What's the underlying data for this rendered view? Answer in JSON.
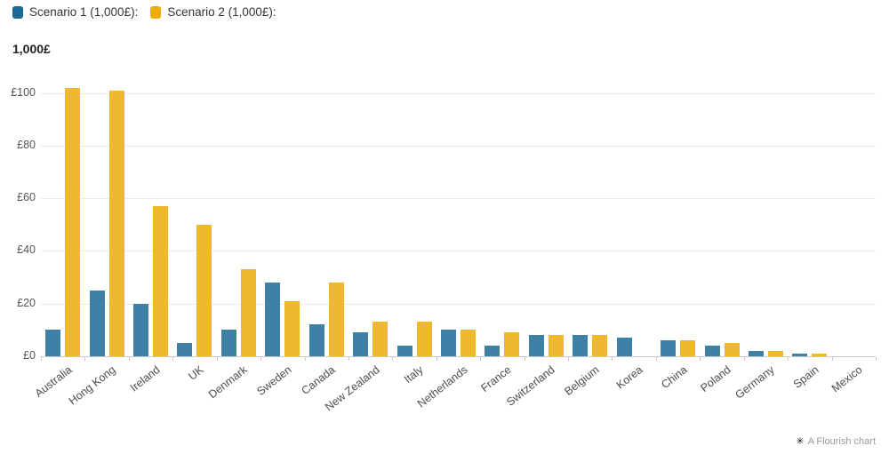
{
  "legend": {
    "items": [
      {
        "label": "Scenario 1 (1,000£):",
        "color": "#1d6996"
      },
      {
        "label": "Scenario 2 (1,000£):",
        "color": "#edad08"
      }
    ]
  },
  "y_axis": {
    "title": "1,000£",
    "tick_labels": [
      "£0",
      "£20",
      "£40",
      "£60",
      "£80",
      "£100"
    ],
    "tick_values": [
      0,
      20,
      40,
      60,
      80,
      100
    ]
  },
  "footer": {
    "credit": "A Flourish chart",
    "logo_glyph": "✳"
  },
  "chart_data": {
    "type": "bar",
    "title": "",
    "xlabel": "",
    "ylabel": "1,000£",
    "ylim": [
      0,
      103
    ],
    "grid": true,
    "legend_position": "top-left",
    "categories": [
      "Australia",
      "Hong Kong",
      "Ireland",
      "UK",
      "Denmark",
      "Sweden",
      "Canada",
      "New Zealand",
      "Italy",
      "Netherlands",
      "France",
      "Switzerland",
      "Belgium",
      "Korea",
      "China",
      "Poland",
      "Germany",
      "Spain",
      "Mexico"
    ],
    "series": [
      {
        "name": "Scenario 1 (1,000£)",
        "color": "#3f80a6",
        "values": [
          10,
          25,
          20,
          5,
          10,
          28,
          12,
          9,
          4,
          10,
          4,
          8,
          8,
          7,
          6,
          4,
          2,
          1,
          0
        ]
      },
      {
        "name": "Scenario 2 (1,000£)",
        "color": "#f0b92d",
        "values": [
          102,
          101,
          57,
          50,
          33,
          21,
          28,
          13,
          13,
          10,
          9,
          8,
          8,
          0,
          6,
          5,
          2,
          1,
          0
        ]
      }
    ]
  }
}
